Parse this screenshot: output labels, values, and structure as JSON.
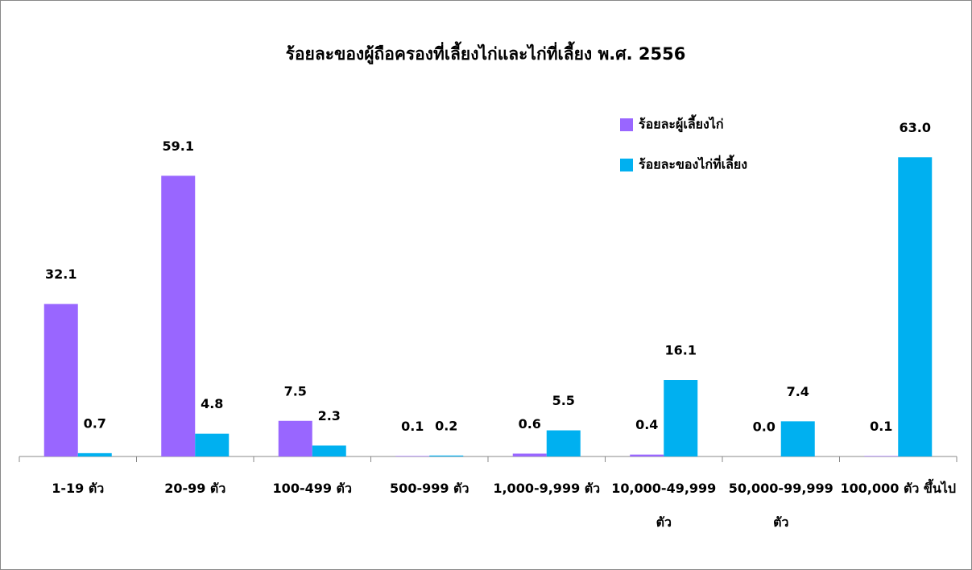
{
  "chart_data": {
    "type": "bar",
    "title": "ร้อยละของผู้ถือครองที่เลี้ยงไก่และไก่ที่เลี้ยง พ.ศ. 2556",
    "categories": [
      "1-19 ตัว",
      "20-99 ตัว",
      "100-499 ตัว",
      "500-999 ตัว",
      "1,000-9,999 ตัว",
      "10,000-49,999 ตัว",
      "50,000-99,999 ตัว",
      "100,000 ตัว ขึ้นไป"
    ],
    "series": [
      {
        "name": "ร้อยละผู้เลี้ยงไก่",
        "color": "#9966ff",
        "values": [
          32.1,
          59.1,
          7.5,
          0.1,
          0.6,
          0.4,
          0.0,
          0.1
        ],
        "value_labels": [
          "32.1",
          "59.1",
          "7.5",
          "0.1",
          "0.6",
          "0.4",
          "0.0",
          "0.1"
        ]
      },
      {
        "name": "ร้อยละของไก่ที่เลี้ยง",
        "color": "#00b0f0",
        "values": [
          0.7,
          4.8,
          2.3,
          0.2,
          5.5,
          16.1,
          7.4,
          63.0
        ],
        "value_labels": [
          "0.7",
          "4.8",
          "2.3",
          "0.2",
          "5.5",
          "16.1",
          "7.4",
          "63.0"
        ]
      }
    ],
    "ylim": [
      0,
      95
    ],
    "legend": "upper right"
  }
}
